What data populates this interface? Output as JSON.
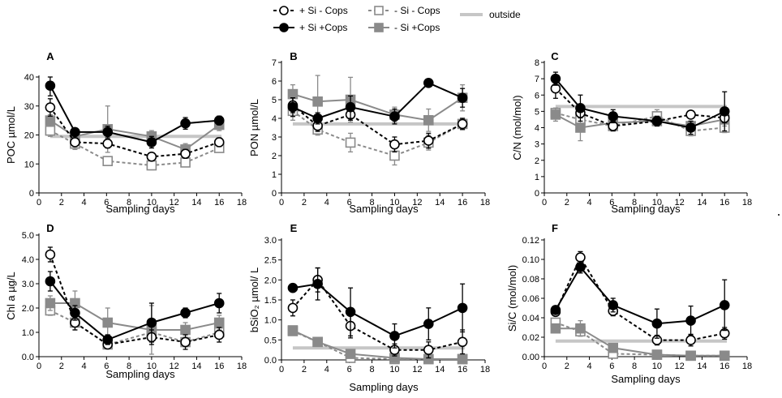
{
  "legend": {
    "items": [
      {
        "label": "+ Si - Cops",
        "key": "siNoCops"
      },
      {
        "label": "+ Si +Cops",
        "key": "siCops"
      },
      {
        "label": "- Si - Cops",
        "key": "noSiNoCops"
      },
      {
        "label": "- Si  +Cops",
        "key": "noSiCops"
      },
      {
        "label": "outside",
        "key": "outside"
      }
    ]
  },
  "styles": {
    "siNoCops": {
      "color": "#000000",
      "dash": "4,3",
      "marker": "circle",
      "fill": "#ffffff"
    },
    "siCops": {
      "color": "#000000",
      "dash": "",
      "marker": "circle",
      "fill": "#000000"
    },
    "noSiNoCops": {
      "color": "#8a8a8a",
      "dash": "4,3",
      "marker": "square",
      "fill": "#ffffff"
    },
    "noSiCops": {
      "color": "#8a8a8a",
      "dash": "",
      "marker": "square",
      "fill": "#8a8a8a"
    },
    "outside": {
      "color": "#c6c6c6"
    }
  },
  "chart_data": [
    {
      "type": "line",
      "panel": "A",
      "xlabel": "Sampling days",
      "ylabel": "POC µmol/L",
      "xlim": [
        0,
        18
      ],
      "ylim": [
        0,
        40
      ],
      "xticks": [
        "0",
        "2",
        "4",
        "6",
        "8",
        "10",
        "12",
        "14",
        "16",
        "18"
      ],
      "yticks": [
        "0",
        "10",
        "20",
        "30",
        "40"
      ],
      "outside": 19.5,
      "series": [
        {
          "key": "siNoCops",
          "x": [
            1,
            3.2,
            6.1,
            10,
            13,
            16
          ],
          "y": [
            29.5,
            17.5,
            17,
            12.5,
            13.5,
            17.5
          ],
          "err": [
            3,
            1.5,
            1.5,
            1,
            1.5,
            1.5
          ]
        },
        {
          "key": "siCops",
          "x": [
            1,
            3.2,
            6.1,
            10,
            13,
            16
          ],
          "y": [
            37,
            21,
            21,
            17.5,
            24,
            25
          ],
          "err": [
            3.5,
            1,
            2,
            2,
            2,
            1.5
          ]
        },
        {
          "key": "noSiNoCops",
          "x": [
            1,
            3.2,
            6.1,
            10,
            13,
            16
          ],
          "y": [
            21.5,
            17,
            11,
            9.5,
            10.5,
            15.5
          ],
          "err": [
            2,
            2,
            1,
            1.5,
            1.5,
            1
          ]
        },
        {
          "key": "noSiCops",
          "x": [
            1,
            3.2,
            6.1,
            10,
            13,
            16
          ],
          "y": [
            25,
            19.5,
            22,
            19.5,
            15,
            23.5
          ],
          "err": [
            2,
            1.5,
            8,
            2,
            2,
            2
          ]
        }
      ]
    },
    {
      "type": "line",
      "panel": "B",
      "xlabel": "Sampling days",
      "ylabel": "PON µmol/L",
      "xlim": [
        0,
        18
      ],
      "ylim": [
        0,
        7
      ],
      "xticks": [
        "0",
        "2",
        "4",
        "6",
        "8",
        "10",
        "12",
        "14",
        "16",
        "18"
      ],
      "yticks": [
        "0",
        "1",
        "2",
        "3",
        "4",
        "5",
        "6",
        "7"
      ],
      "outside": 3.7,
      "series": [
        {
          "key": "siNoCops",
          "x": [
            1,
            3.2,
            6.1,
            10,
            13,
            16
          ],
          "y": [
            4.7,
            3.6,
            4.2,
            2.6,
            2.8,
            3.7
          ],
          "err": [
            0.4,
            0.3,
            0.3,
            0.4,
            0.4,
            0.3
          ]
        },
        {
          "key": "siCops",
          "x": [
            1,
            3.2,
            6.1,
            10,
            13,
            16
          ],
          "y": [
            4.6,
            4.0,
            4.6,
            4.1,
            5.9,
            5.1
          ],
          "err": [
            0.5,
            0.3,
            0.6,
            0.4,
            0.2,
            0.5
          ]
        },
        {
          "key": "noSiNoCops",
          "x": [
            1,
            3.2,
            6.1,
            10,
            13,
            16
          ],
          "y": [
            4.4,
            3.4,
            2.7,
            2.0,
            2.7,
            3.7
          ],
          "err": [
            0.5,
            0.3,
            0.5,
            0.5,
            0.4,
            0.3
          ]
        },
        {
          "key": "noSiCops",
          "x": [
            1,
            3.2,
            6.1,
            10,
            13,
            16
          ],
          "y": [
            5.3,
            4.9,
            5.0,
            4.2,
            3.9,
            5.1
          ],
          "err": [
            0.5,
            1.4,
            1.2,
            0.4,
            0.6,
            0.7
          ]
        }
      ]
    },
    {
      "type": "line",
      "panel": "C",
      "xlabel": "Sampling days",
      "ylabel": "C/N (mol/mol)",
      "xlim": [
        0,
        18
      ],
      "ylim": [
        0,
        8
      ],
      "xticks": [
        "0",
        "2",
        "4",
        "6",
        "8",
        "10",
        "12",
        "14",
        "16",
        "18"
      ],
      "yticks": [
        "0",
        "1",
        "2",
        "3",
        "4",
        "5",
        "6",
        "7",
        "8"
      ],
      "outside": 5.3,
      "series": [
        {
          "key": "siNoCops",
          "x": [
            1,
            3.2,
            6.1,
            10,
            13,
            16
          ],
          "y": [
            6.4,
            4.9,
            4.1,
            4.4,
            4.8,
            4.6
          ],
          "err": [
            0.6,
            0.3,
            0.3,
            0.2,
            0.2,
            0.3
          ]
        },
        {
          "key": "siCops",
          "x": [
            1,
            3.2,
            6.1,
            10,
            13,
            16
          ],
          "y": [
            7.0,
            5.2,
            4.7,
            4.4,
            4.0,
            5.0
          ],
          "err": [
            0.4,
            0.8,
            0.4,
            0.3,
            0.4,
            1.2
          ]
        },
        {
          "key": "noSiNoCops",
          "x": [
            1,
            3.2,
            6.1,
            10,
            13,
            16
          ],
          "y": [
            4.9,
            4.5,
            4.1,
            4.7,
            3.8,
            4.0
          ],
          "err": [
            0.3,
            0.3,
            0.3,
            0.4,
            0.3,
            0.3
          ]
        },
        {
          "key": "noSiCops",
          "x": [
            1,
            3.2,
            6.1,
            10,
            13,
            16
          ],
          "y": [
            4.8,
            4.0,
            4.3,
            4.4,
            4.1,
            4.5
          ],
          "err": [
            0.4,
            0.8,
            0.3,
            0.3,
            0.3,
            0.4
          ]
        }
      ]
    },
    {
      "type": "line",
      "panel": "D",
      "xlabel": "Sampling days",
      "ylabel": "Chl a µg/L",
      "xlim": [
        0,
        18
      ],
      "ylim": [
        0,
        5.0
      ],
      "xticks": [
        "0",
        "2",
        "4",
        "6",
        "8",
        "10",
        "12",
        "14",
        "16",
        "18"
      ],
      "yticks": [
        "0.0",
        "1.0",
        "2.0",
        "3.0",
        "4.0",
        "5.0"
      ],
      "outside": null,
      "series": [
        {
          "key": "siNoCops",
          "x": [
            1,
            3.2,
            6.1,
            10,
            13,
            16
          ],
          "y": [
            4.2,
            1.4,
            0.5,
            0.8,
            0.6,
            0.9
          ],
          "err": [
            0.3,
            0.3,
            0.1,
            0.3,
            0.3,
            0.3
          ]
        },
        {
          "key": "siCops",
          "x": [
            1,
            3.2,
            6.1,
            10,
            13,
            16
          ],
          "y": [
            3.1,
            1.8,
            0.7,
            1.4,
            1.8,
            2.2
          ],
          "err": [
            0.4,
            0.3,
            0.2,
            0.8,
            0.2,
            0.4
          ]
        },
        {
          "key": "noSiNoCops",
          "x": [
            1,
            3.2,
            6.1,
            10,
            13,
            16
          ],
          "y": [
            1.9,
            1.4,
            0.5,
            1.0,
            0.6,
            1.0
          ],
          "err": [
            0.2,
            0.3,
            0.1,
            0.2,
            0.2,
            0.2
          ]
        },
        {
          "key": "noSiCops",
          "x": [
            1,
            3.2,
            6.1,
            10,
            13,
            16
          ],
          "y": [
            2.2,
            2.2,
            1.4,
            1.1,
            1.1,
            1.4
          ],
          "err": [
            0.3,
            0.5,
            0.6,
            1.0,
            0.3,
            0.3
          ]
        }
      ]
    },
    {
      "type": "line",
      "panel": "E",
      "xlabel": "Sampling days",
      "ylabel": "bSiO₂ µmol/ L",
      "xlim": [
        0,
        18
      ],
      "ylim": [
        0,
        3.0
      ],
      "xticks": [
        "0",
        "2",
        "4",
        "6",
        "8",
        "10",
        "12",
        "14",
        "16",
        "18"
      ],
      "yticks": [
        "0.0",
        "0.5",
        "1.0",
        "1.5",
        "2.0",
        "2.5",
        "3.0"
      ],
      "outside": 0.3,
      "series": [
        {
          "key": "siNoCops",
          "x": [
            1,
            3.2,
            6.1,
            10,
            13,
            16
          ],
          "y": [
            1.3,
            2.0,
            0.85,
            0.25,
            0.25,
            0.45
          ],
          "err": [
            0.2,
            0.3,
            0.3,
            0.15,
            0.2,
            0.3
          ]
        },
        {
          "key": "siCops",
          "x": [
            1,
            3.2,
            6.1,
            10,
            13,
            16
          ],
          "y": [
            1.8,
            1.9,
            1.2,
            0.6,
            0.9,
            1.3
          ],
          "err": [
            0.1,
            0.4,
            0.6,
            0.3,
            0.4,
            0.6
          ]
        },
        {
          "key": "noSiNoCops",
          "x": [
            1,
            3.2,
            6.1,
            10,
            13,
            16
          ],
          "y": [
            0.72,
            0.45,
            0.05,
            0.02,
            0.02,
            0.02
          ],
          "err": [
            0.08,
            0.08,
            0.03,
            0.02,
            0.02,
            0.02
          ]
        },
        {
          "key": "noSiCops",
          "x": [
            1,
            3.2,
            6.1,
            10,
            13,
            16
          ],
          "y": [
            0.74,
            0.45,
            0.15,
            0.05,
            0.02,
            0.02
          ],
          "err": [
            0.08,
            0.08,
            0.05,
            0.03,
            0.02,
            0.02
          ]
        }
      ]
    },
    {
      "type": "line",
      "panel": "F",
      "xlabel": "Sampling days",
      "ylabel": "Si/C (mol/mol)",
      "xlim": [
        0,
        18
      ],
      "ylim": [
        0,
        0.12
      ],
      "xticks": [
        "0",
        "2",
        "4",
        "6",
        "8",
        "10",
        "12",
        "14",
        "16",
        "18"
      ],
      "yticks": [
        "0.00",
        "0.02",
        "0.04",
        "0.06",
        "0.08",
        "0.10",
        "0.12"
      ],
      "outside": 0.016,
      "series": [
        {
          "key": "siNoCops",
          "x": [
            1,
            3.2,
            6.1,
            10,
            13,
            16
          ],
          "y": [
            0.046,
            0.102,
            0.047,
            0.017,
            0.017,
            0.024
          ],
          "err": [
            0.004,
            0.006,
            0.005,
            0.005,
            0.006,
            0.006
          ]
        },
        {
          "key": "siCops",
          "x": [
            1,
            3.2,
            6.1,
            10,
            13,
            16
          ],
          "y": [
            0.048,
            0.092,
            0.053,
            0.034,
            0.037,
            0.053
          ],
          "err": [
            0.004,
            0.006,
            0.007,
            0.015,
            0.015,
            0.026
          ]
        },
        {
          "key": "noSiNoCops",
          "x": [
            1,
            3.2,
            6.1,
            10,
            13,
            16
          ],
          "y": [
            0.035,
            0.026,
            0.003,
            0.002,
            0.001,
            0.001
          ],
          "err": [
            0.003,
            0.004,
            0.002,
            0.001,
            0.001,
            0.001
          ]
        },
        {
          "key": "noSiCops",
          "x": [
            1,
            3.2,
            6.1,
            10,
            13,
            16
          ],
          "y": [
            0.029,
            0.029,
            0.009,
            0.002,
            0.001,
            0.001
          ],
          "err": [
            0.003,
            0.008,
            0.003,
            0.001,
            0.001,
            0.001
          ]
        }
      ]
    }
  ]
}
